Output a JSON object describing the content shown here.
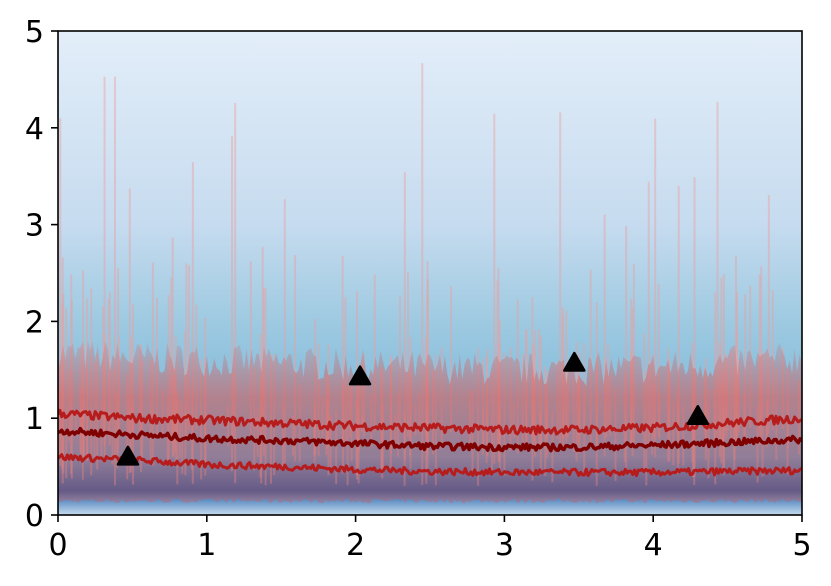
{
  "chart_data": {
    "type": "line",
    "title": "",
    "xlabel": "",
    "ylabel": "",
    "xlim": [
      0,
      5
    ],
    "ylim": [
      0,
      5
    ],
    "x_ticks": [
      "0",
      "1",
      "2",
      "3",
      "4",
      "5"
    ],
    "y_ticks": [
      "0",
      "1",
      "2",
      "3",
      "4",
      "5"
    ],
    "grid": false,
    "legend": "none",
    "background": {
      "type": "density-gradient",
      "colormap": "Blues",
      "description": "vertical density shading, darkest near y=0"
    },
    "series": [
      {
        "role": "posterior-samples",
        "style": "spiky translucent lines",
        "color": "#e8a0a0",
        "median_level": 0.75,
        "spread": [
          0.0,
          4.9
        ]
      },
      {
        "role": "upper-quantile",
        "color": "#b71c1c",
        "x": [
          0,
          0.5,
          1,
          1.5,
          2,
          2.5,
          3,
          3.5,
          4,
          4.5,
          5
        ],
        "y": [
          1.05,
          1.0,
          0.98,
          0.95,
          0.92,
          0.9,
          0.88,
          0.88,
          0.9,
          0.95,
          1.0
        ]
      },
      {
        "role": "median",
        "color": "#7f0000",
        "x": [
          0,
          0.5,
          1,
          1.5,
          2,
          2.5,
          3,
          3.5,
          4,
          4.5,
          5
        ],
        "y": [
          0.87,
          0.83,
          0.79,
          0.77,
          0.74,
          0.71,
          0.7,
          0.7,
          0.72,
          0.75,
          0.78
        ]
      },
      {
        "role": "lower-quantile",
        "color": "#b71c1c",
        "x": [
          0,
          0.5,
          1,
          1.5,
          2,
          2.5,
          3,
          3.5,
          4,
          4.5,
          5
        ],
        "y": [
          0.6,
          0.57,
          0.52,
          0.5,
          0.47,
          0.45,
          0.44,
          0.44,
          0.44,
          0.45,
          0.46
        ]
      }
    ],
    "markers": {
      "shape": "triangle-up",
      "color": "#000000",
      "points": [
        {
          "x": 0.47,
          "y": 0.6
        },
        {
          "x": 2.03,
          "y": 1.43
        },
        {
          "x": 3.47,
          "y": 1.57
        },
        {
          "x": 4.3,
          "y": 1.02
        }
      ]
    }
  }
}
